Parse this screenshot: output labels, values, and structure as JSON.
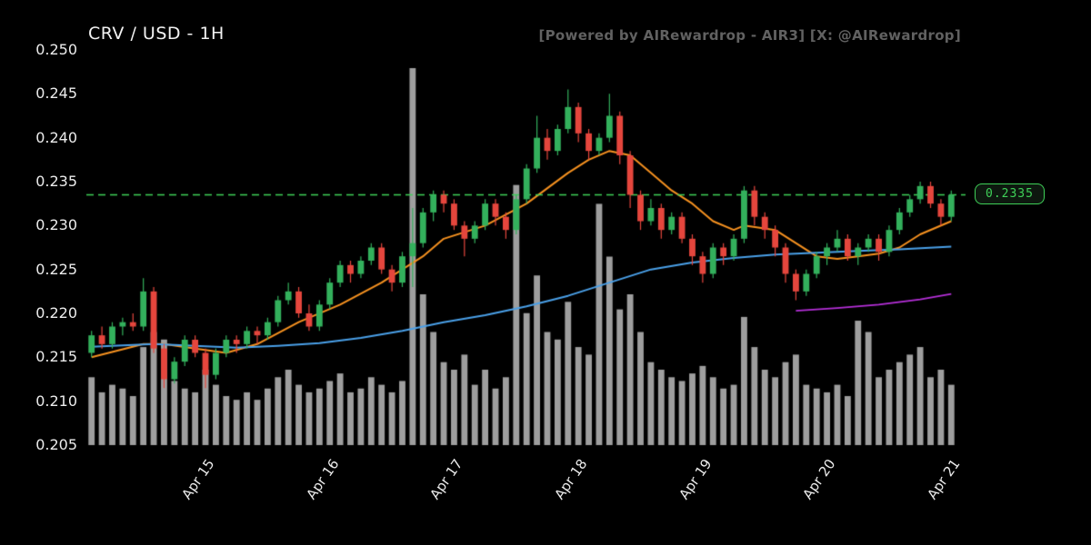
{
  "header": {
    "title": "CRV / USD - 1H",
    "watermark": "[Powered by AIRewardrop - AIR3] [X: @AIRewardrop]"
  },
  "chart_data": {
    "type": "candlestick",
    "symbol": "CRV/USD",
    "interval": "1H",
    "title": "CRV / USD - 1H",
    "colors": {
      "background": "#000000",
      "up": "#33b05c",
      "down": "#e5463d",
      "volume": "#9e9e9e",
      "ma_fast": "#f59120",
      "ma_slow": "#4aa0e8",
      "ma_long": "#b52fd8",
      "last_price_line": "#3fd158",
      "tick_text": "#ececec"
    },
    "y_axis": {
      "min": 0.205,
      "max": 0.25,
      "ticks": [
        0.25,
        0.245,
        0.24,
        0.235,
        0.23,
        0.225,
        0.22,
        0.215,
        0.21,
        0.205
      ],
      "tick_labels": [
        "0.250",
        "0.245",
        "0.240",
        "0.235",
        "0.230",
        "0.225",
        "0.220",
        "0.215",
        "0.210",
        "0.205"
      ]
    },
    "x_axis": {
      "tick_labels": [
        "Apr 15",
        "Apr 16",
        "Apr 17",
        "Apr 18",
        "Apr 19",
        "Apr 20",
        "Apr 21"
      ],
      "tick_positions": [
        10,
        22,
        34,
        46,
        58,
        70,
        82
      ]
    },
    "last_price": {
      "value": 0.2335,
      "label": "0.2335"
    },
    "candles": [
      [
        0.2155,
        0.218,
        0.215,
        0.2175,
        18
      ],
      [
        0.2175,
        0.2185,
        0.216,
        0.2165,
        14
      ],
      [
        0.2165,
        0.219,
        0.216,
        0.2185,
        16
      ],
      [
        0.2185,
        0.2195,
        0.2175,
        0.219,
        15
      ],
      [
        0.219,
        0.22,
        0.218,
        0.2185,
        13
      ],
      [
        0.2185,
        0.224,
        0.218,
        0.2225,
        26
      ],
      [
        0.2225,
        0.223,
        0.2155,
        0.216,
        30
      ],
      [
        0.216,
        0.2165,
        0.2115,
        0.2125,
        28
      ],
      [
        0.2125,
        0.215,
        0.212,
        0.2145,
        17
      ],
      [
        0.2145,
        0.2175,
        0.214,
        0.217,
        15
      ],
      [
        0.217,
        0.2175,
        0.215,
        0.2155,
        14
      ],
      [
        0.2155,
        0.216,
        0.2115,
        0.213,
        20
      ],
      [
        0.213,
        0.216,
        0.2125,
        0.2155,
        16
      ],
      [
        0.2155,
        0.2175,
        0.215,
        0.217,
        13
      ],
      [
        0.217,
        0.2175,
        0.2155,
        0.2165,
        12
      ],
      [
        0.2165,
        0.2185,
        0.216,
        0.218,
        14
      ],
      [
        0.218,
        0.2185,
        0.2165,
        0.2175,
        12
      ],
      [
        0.2175,
        0.2195,
        0.217,
        0.219,
        15
      ],
      [
        0.219,
        0.222,
        0.2185,
        0.2215,
        18
      ],
      [
        0.2215,
        0.2235,
        0.221,
        0.2225,
        20
      ],
      [
        0.2225,
        0.223,
        0.2195,
        0.22,
        16
      ],
      [
        0.22,
        0.221,
        0.218,
        0.2185,
        14
      ],
      [
        0.2185,
        0.2215,
        0.218,
        0.221,
        15
      ],
      [
        0.221,
        0.224,
        0.2205,
        0.2235,
        17
      ],
      [
        0.2235,
        0.226,
        0.223,
        0.2255,
        19
      ],
      [
        0.2255,
        0.226,
        0.2235,
        0.2245,
        14
      ],
      [
        0.2245,
        0.2265,
        0.224,
        0.226,
        15
      ],
      [
        0.226,
        0.228,
        0.2255,
        0.2275,
        18
      ],
      [
        0.2275,
        0.228,
        0.2245,
        0.225,
        16
      ],
      [
        0.225,
        0.2255,
        0.2225,
        0.2235,
        14
      ],
      [
        0.2235,
        0.227,
        0.223,
        0.2265,
        17
      ],
      [
        0.2265,
        0.232,
        0.223,
        0.228,
        100
      ],
      [
        0.228,
        0.232,
        0.2275,
        0.2315,
        40
      ],
      [
        0.2315,
        0.234,
        0.2305,
        0.2335,
        30
      ],
      [
        0.2335,
        0.234,
        0.2315,
        0.2325,
        22
      ],
      [
        0.2325,
        0.233,
        0.2295,
        0.23,
        20
      ],
      [
        0.23,
        0.2305,
        0.2265,
        0.2285,
        24
      ],
      [
        0.2285,
        0.2305,
        0.228,
        0.23,
        16
      ],
      [
        0.23,
        0.233,
        0.2295,
        0.2325,
        20
      ],
      [
        0.2325,
        0.233,
        0.23,
        0.231,
        15
      ],
      [
        0.231,
        0.2315,
        0.2285,
        0.2295,
        18
      ],
      [
        0.2295,
        0.2335,
        0.229,
        0.233,
        69
      ],
      [
        0.233,
        0.237,
        0.2325,
        0.2365,
        35
      ],
      [
        0.2365,
        0.2425,
        0.236,
        0.24,
        45
      ],
      [
        0.24,
        0.241,
        0.2375,
        0.2385,
        30
      ],
      [
        0.2385,
        0.2415,
        0.238,
        0.241,
        28
      ],
      [
        0.241,
        0.2455,
        0.2405,
        0.2435,
        38
      ],
      [
        0.2435,
        0.244,
        0.2395,
        0.2405,
        26
      ],
      [
        0.2405,
        0.241,
        0.2375,
        0.2385,
        24
      ],
      [
        0.2385,
        0.2405,
        0.238,
        0.24,
        64
      ],
      [
        0.24,
        0.245,
        0.2395,
        0.2425,
        50
      ],
      [
        0.2425,
        0.243,
        0.237,
        0.238,
        36
      ],
      [
        0.238,
        0.2385,
        0.232,
        0.2335,
        40
      ],
      [
        0.2335,
        0.234,
        0.2295,
        0.2305,
        30
      ],
      [
        0.2305,
        0.233,
        0.23,
        0.232,
        22
      ],
      [
        0.232,
        0.2325,
        0.2285,
        0.2295,
        20
      ],
      [
        0.2295,
        0.2315,
        0.229,
        0.231,
        18
      ],
      [
        0.231,
        0.2315,
        0.228,
        0.2285,
        17
      ],
      [
        0.2285,
        0.229,
        0.2255,
        0.2265,
        19
      ],
      [
        0.2265,
        0.227,
        0.2235,
        0.2245,
        21
      ],
      [
        0.2245,
        0.228,
        0.224,
        0.2275,
        18
      ],
      [
        0.2275,
        0.228,
        0.2255,
        0.2265,
        15
      ],
      [
        0.2265,
        0.229,
        0.226,
        0.2285,
        16
      ],
      [
        0.2285,
        0.2345,
        0.228,
        0.234,
        34
      ],
      [
        0.234,
        0.2345,
        0.23,
        0.231,
        26
      ],
      [
        0.231,
        0.2315,
        0.2285,
        0.2295,
        20
      ],
      [
        0.2295,
        0.23,
        0.2265,
        0.2275,
        18
      ],
      [
        0.2275,
        0.228,
        0.2235,
        0.2245,
        22
      ],
      [
        0.2245,
        0.225,
        0.2215,
        0.2225,
        24
      ],
      [
        0.2225,
        0.225,
        0.222,
        0.2245,
        16
      ],
      [
        0.2245,
        0.227,
        0.224,
        0.2265,
        15
      ],
      [
        0.2265,
        0.228,
        0.2255,
        0.2275,
        14
      ],
      [
        0.2275,
        0.2295,
        0.227,
        0.2285,
        16
      ],
      [
        0.2285,
        0.229,
        0.226,
        0.2265,
        13
      ],
      [
        0.2265,
        0.228,
        0.2255,
        0.2275,
        33
      ],
      [
        0.2275,
        0.229,
        0.227,
        0.2285,
        30
      ],
      [
        0.2285,
        0.229,
        0.226,
        0.227,
        18
      ],
      [
        0.227,
        0.23,
        0.2265,
        0.2295,
        20
      ],
      [
        0.2295,
        0.232,
        0.229,
        0.2315,
        22
      ],
      [
        0.2315,
        0.2335,
        0.231,
        0.233,
        24
      ],
      [
        0.233,
        0.235,
        0.2325,
        0.2345,
        26
      ],
      [
        0.2345,
        0.235,
        0.232,
        0.2325,
        18
      ],
      [
        0.2325,
        0.233,
        0.23,
        0.231,
        20
      ],
      [
        0.231,
        0.234,
        0.2305,
        0.2335,
        16
      ]
    ],
    "overlays": [
      {
        "name": "ma-fast",
        "color": "#f59120",
        "width": 2,
        "points": [
          [
            0,
            0.215
          ],
          [
            5,
            0.2165
          ],
          [
            7,
            0.2165
          ],
          [
            10,
            0.216
          ],
          [
            13,
            0.2155
          ],
          [
            16,
            0.2165
          ],
          [
            20,
            0.219
          ],
          [
            24,
            0.221
          ],
          [
            28,
            0.2235
          ],
          [
            32,
            0.2265
          ],
          [
            34,
            0.2285
          ],
          [
            38,
            0.23
          ],
          [
            42,
            0.2325
          ],
          [
            46,
            0.236
          ],
          [
            48,
            0.2375
          ],
          [
            50,
            0.2385
          ],
          [
            52,
            0.238
          ],
          [
            54,
            0.236
          ],
          [
            56,
            0.234
          ],
          [
            58,
            0.2325
          ],
          [
            60,
            0.2305
          ],
          [
            62,
            0.2295
          ],
          [
            63,
            0.23
          ],
          [
            66,
            0.2295
          ],
          [
            68,
            0.228
          ],
          [
            70,
            0.2265
          ],
          [
            72,
            0.2262
          ],
          [
            74,
            0.2265
          ],
          [
            76,
            0.2268
          ],
          [
            78,
            0.2275
          ],
          [
            80,
            0.229
          ],
          [
            83,
            0.2305
          ]
        ]
      },
      {
        "name": "ma-slow",
        "color": "#4aa0e8",
        "width": 2,
        "points": [
          [
            0,
            0.2162
          ],
          [
            6,
            0.2165
          ],
          [
            10,
            0.2163
          ],
          [
            14,
            0.2161
          ],
          [
            18,
            0.2163
          ],
          [
            22,
            0.2166
          ],
          [
            26,
            0.2172
          ],
          [
            30,
            0.218
          ],
          [
            34,
            0.219
          ],
          [
            38,
            0.2198
          ],
          [
            42,
            0.2208
          ],
          [
            46,
            0.222
          ],
          [
            50,
            0.2235
          ],
          [
            54,
            0.225
          ],
          [
            58,
            0.2258
          ],
          [
            62,
            0.2263
          ],
          [
            66,
            0.2267
          ],
          [
            70,
            0.2269
          ],
          [
            74,
            0.2271
          ],
          [
            78,
            0.2273
          ],
          [
            83,
            0.2276
          ]
        ]
      },
      {
        "name": "ma-long",
        "color": "#b52fd8",
        "width": 1.8,
        "points": [
          [
            68,
            0.2203
          ],
          [
            72,
            0.2206
          ],
          [
            76,
            0.221
          ],
          [
            80,
            0.2216
          ],
          [
            83,
            0.2222
          ]
        ]
      }
    ]
  }
}
